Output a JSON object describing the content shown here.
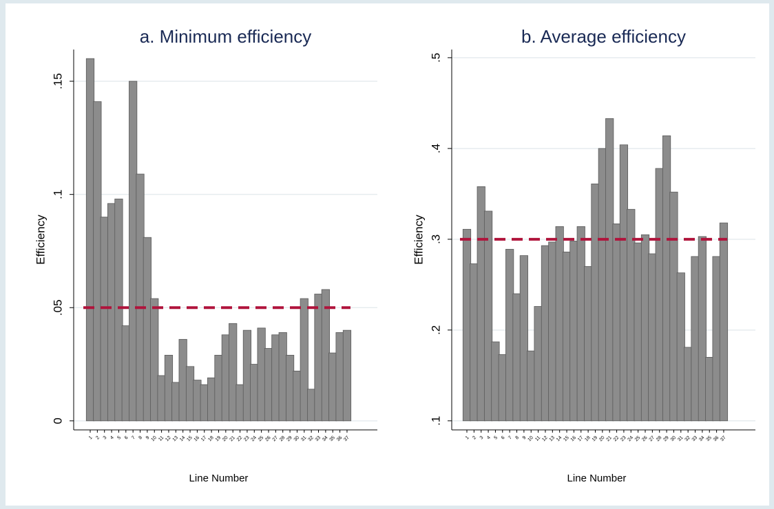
{
  "chart_data": [
    {
      "type": "bar",
      "title": "a. Minimum efficiency",
      "x_label": "Line Number",
      "y_label": "Efficiency",
      "categories": [
        "1",
        "2",
        "3",
        "4",
        "5",
        "6",
        "7",
        "8",
        "9",
        "10",
        "11",
        "12",
        "13",
        "14",
        "15",
        "16",
        "17",
        "18",
        "19",
        "20",
        "21",
        "22",
        "23",
        "24",
        "25",
        "26",
        "27",
        "28",
        "29",
        "30",
        "31",
        "32",
        "33",
        "34",
        "35",
        "36",
        "37"
      ],
      "values": [
        0.16,
        0.141,
        0.09,
        0.096,
        0.098,
        0.042,
        0.15,
        0.109,
        0.081,
        0.054,
        0.02,
        0.029,
        0.017,
        0.036,
        0.024,
        0.018,
        0.016,
        0.019,
        0.029,
        0.038,
        0.043,
        0.016,
        0.04,
        0.025,
        0.041,
        0.032,
        0.038,
        0.039,
        0.029,
        0.022,
        0.054,
        0.014,
        0.056,
        0.058,
        0.03,
        0.039,
        0.04
      ],
      "color": "#8c8c8c",
      "ylim": [
        -0.004,
        0.164
      ],
      "yticks": [
        0,
        {
          "value": 0.05,
          "label": ".05"
        },
        {
          "value": 0.1,
          "label": ".1"
        },
        {
          "value": 0.15,
          "label": ".15"
        }
      ],
      "grid": true,
      "reference_line": {
        "value": 0.05,
        "color": "#b0143c"
      }
    },
    {
      "type": "bar",
      "title": "b. Average efficiency",
      "x_label": "Line Number",
      "y_label": "Efficiency",
      "categories": [
        "1",
        "2",
        "3",
        "4",
        "5",
        "6",
        "7",
        "8",
        "9",
        "10",
        "11",
        "12",
        "13",
        "14",
        "15",
        "16",
        "17",
        "18",
        "19",
        "20",
        "21",
        "22",
        "23",
        "24",
        "25",
        "26",
        "27",
        "28",
        "29",
        "30",
        "31",
        "32",
        "33",
        "34",
        "35",
        "36",
        "37"
      ],
      "values": [
        0.311,
        0.273,
        0.358,
        0.331,
        0.187,
        0.173,
        0.289,
        0.24,
        0.282,
        0.177,
        0.226,
        0.293,
        0.297,
        0.314,
        0.286,
        0.298,
        0.314,
        0.27,
        0.361,
        0.4,
        0.433,
        0.317,
        0.404,
        0.333,
        0.296,
        0.305,
        0.284,
        0.378,
        0.414,
        0.352,
        0.263,
        0.181,
        0.281,
        0.303,
        0.17,
        0.281,
        0.318
      ],
      "color": "#8c8c8c",
      "ylim": [
        0.09,
        0.509
      ],
      "yticks": [
        {
          "value": 0.1,
          "label": ".1"
        },
        {
          "value": 0.2,
          "label": ".2"
        },
        {
          "value": 0.3,
          "label": ".3"
        },
        {
          "value": 0.4,
          "label": ".4"
        },
        {
          "value": 0.5,
          "label": ".5"
        }
      ],
      "grid": true,
      "reference_line": {
        "value": 0.3,
        "color": "#b0143c"
      }
    }
  ]
}
